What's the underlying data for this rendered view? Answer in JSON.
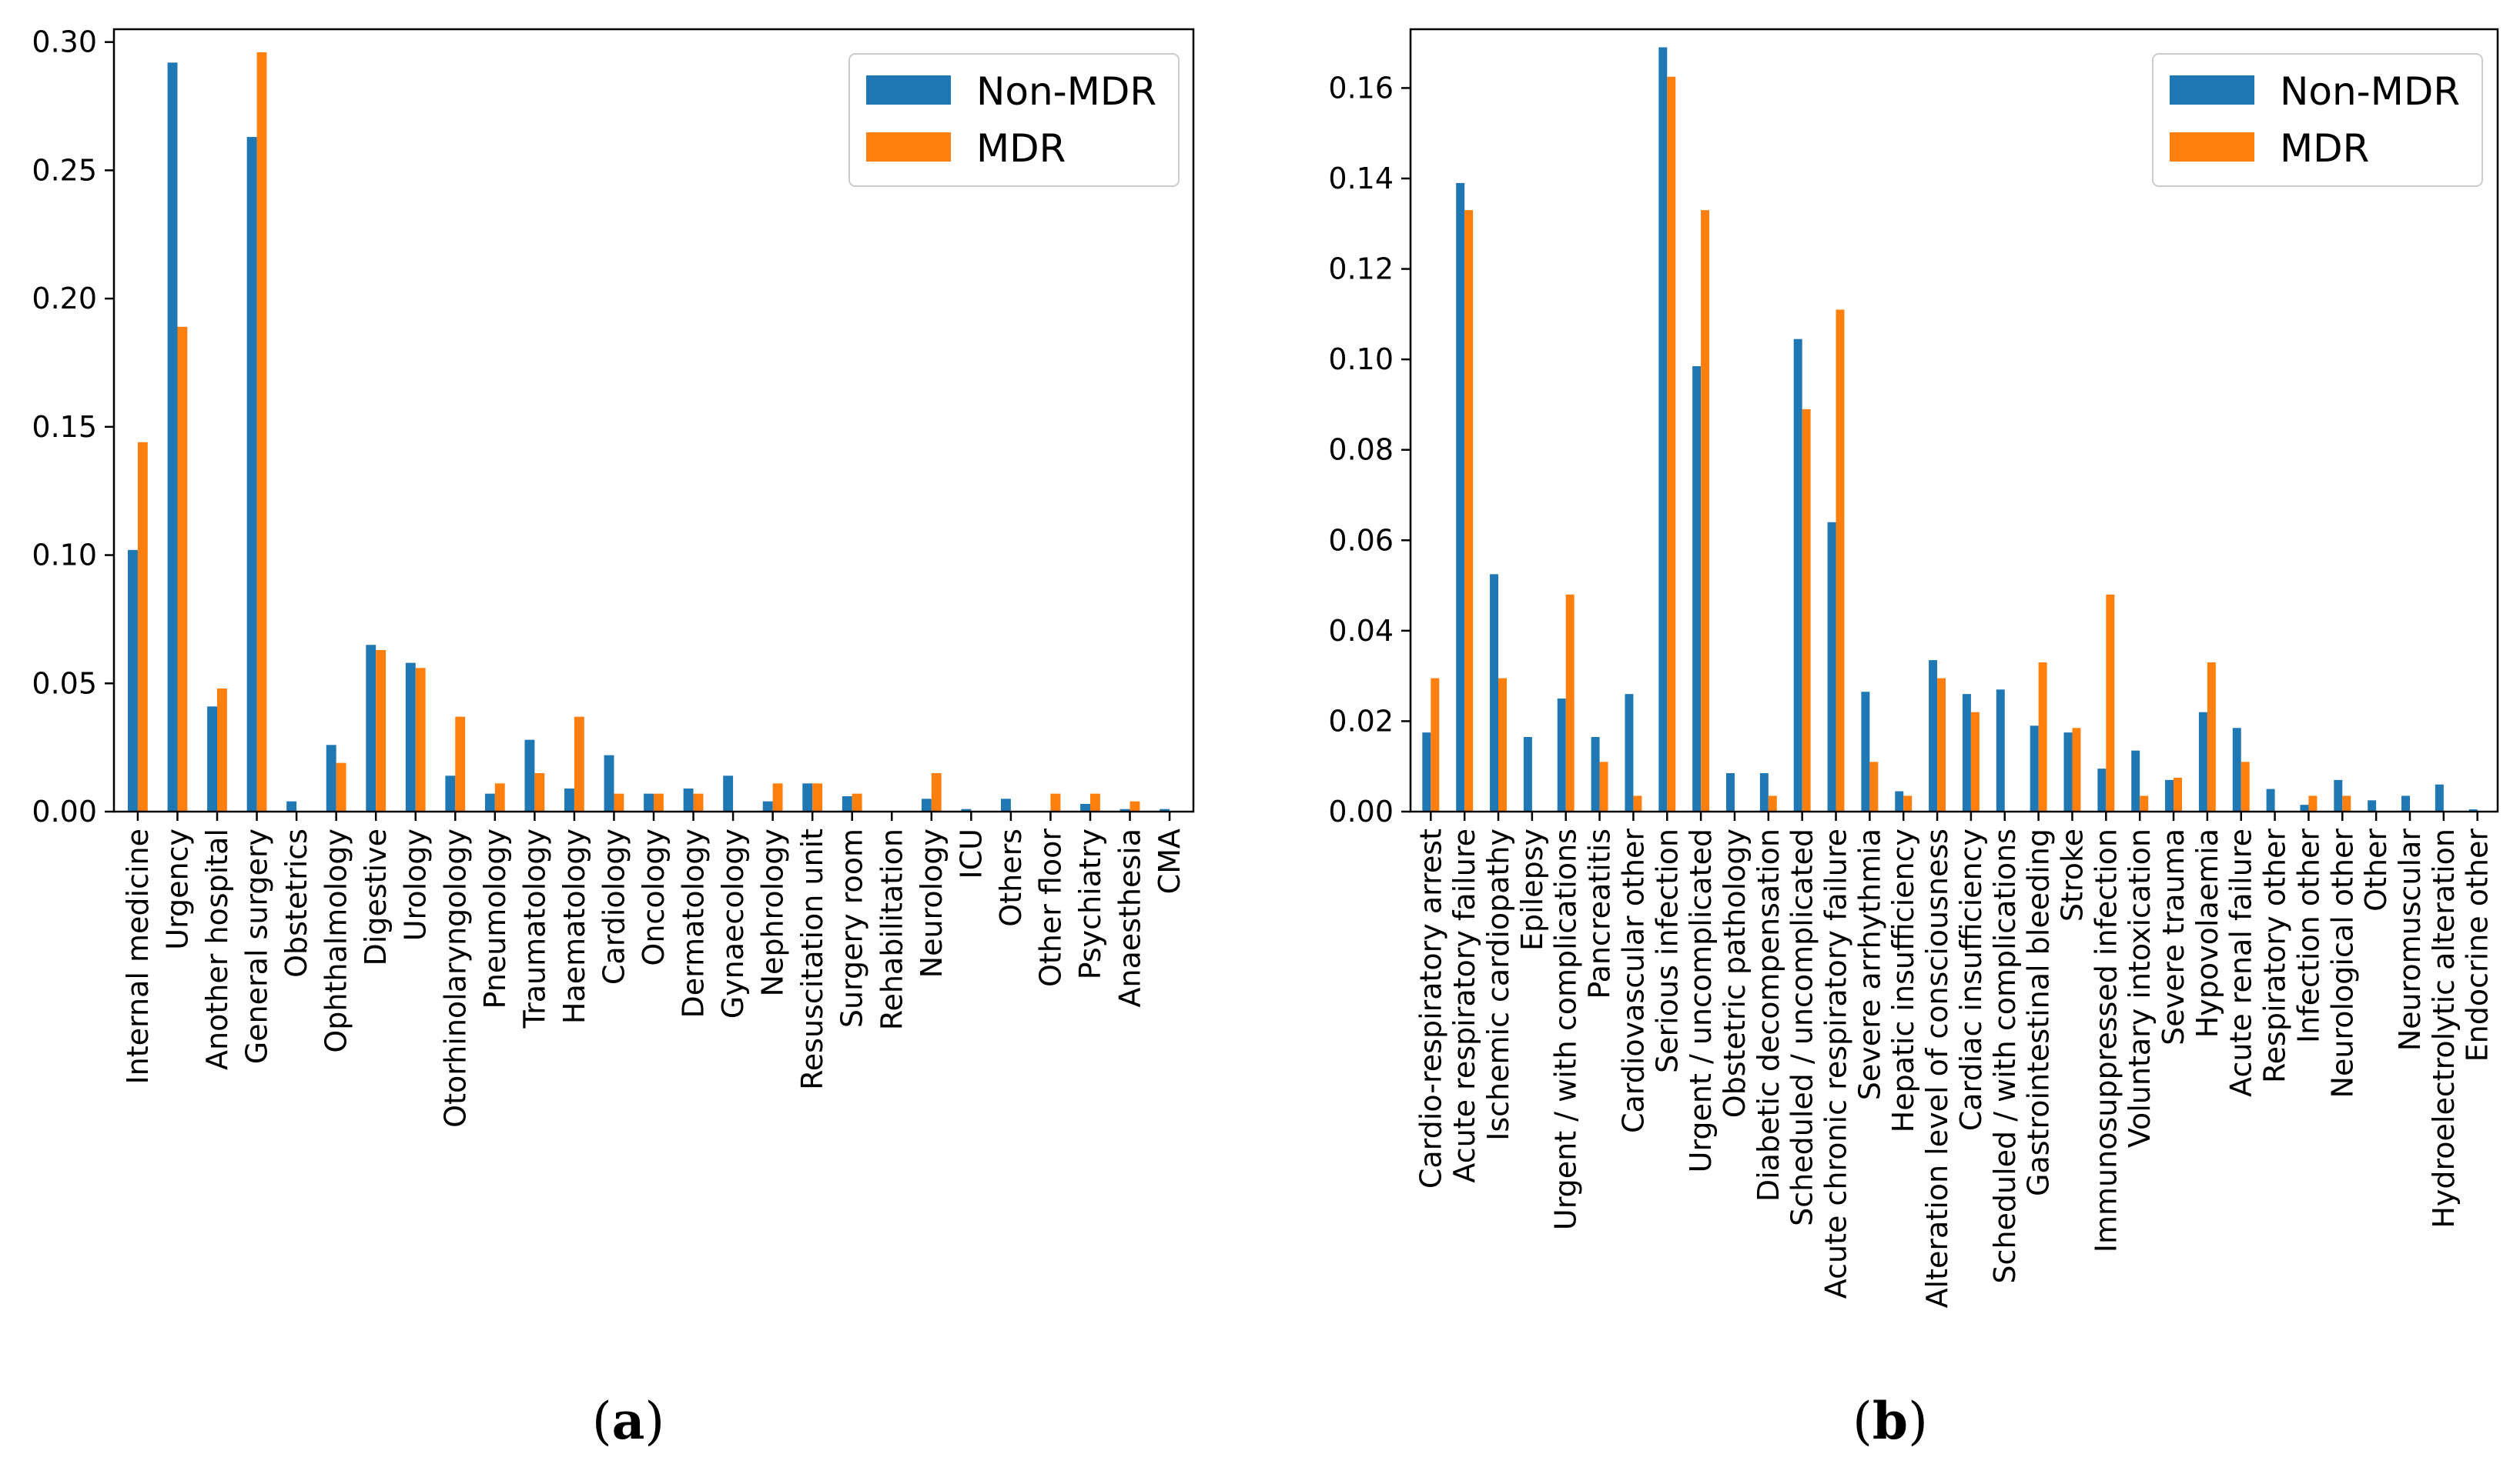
{
  "colors": {
    "non_mdr": "#1f77b4",
    "mdr": "#ff7f0e"
  },
  "chart_data": [
    {
      "type": "bar",
      "caption_letter": "a",
      "legend": {
        "placement": "top-right",
        "entries": [
          "Non-MDR",
          "MDR"
        ]
      },
      "ylim": [
        0,
        0.305
      ],
      "yticks": [
        {
          "value": 0.0,
          "label": "0.00"
        },
        {
          "value": 0.05,
          "label": "0.05"
        },
        {
          "value": 0.1,
          "label": "0.10"
        },
        {
          "value": 0.15,
          "label": "0.15"
        },
        {
          "value": 0.2,
          "label": "0.20"
        },
        {
          "value": 0.25,
          "label": "0.25"
        },
        {
          "value": 0.3,
          "label": "0.30"
        }
      ],
      "categories": [
        "Internal medicine",
        "Urgency",
        "Another hospital",
        "General surgery",
        "Obstetrics",
        "Ophthalmology",
        "Digestive",
        "Urology",
        "Otorhinolaryngology",
        "Pneumology",
        "Traumatology",
        "Haematology",
        "Cardiology",
        "Oncology",
        "Dermatology",
        "Gynaecology",
        "Nephrology",
        "Resuscitation unit",
        "Surgery room",
        "Rehabilitation",
        "Neurology",
        "ICU",
        "Others",
        "Other floor",
        "Psychiatry",
        "Anaesthesia",
        "CMA"
      ],
      "series": [
        {
          "name": "Non-MDR",
          "values": [
            0.102,
            0.292,
            0.041,
            0.263,
            0.004,
            0.026,
            0.065,
            0.058,
            0.014,
            0.007,
            0.028,
            0.009,
            0.022,
            0.007,
            0.009,
            0.014,
            0.004,
            0.011,
            0.006,
            0.0,
            0.005,
            0.001,
            0.005,
            0.0,
            0.003,
            0.001,
            0.001
          ]
        },
        {
          "name": "MDR",
          "values": [
            0.144,
            0.189,
            0.048,
            0.296,
            0.0,
            0.019,
            0.063,
            0.056,
            0.037,
            0.011,
            0.015,
            0.037,
            0.007,
            0.007,
            0.007,
            0.0,
            0.011,
            0.011,
            0.007,
            0.0,
            0.015,
            0.0,
            0.0,
            0.007,
            0.007,
            0.004,
            0.0
          ]
        }
      ]
    },
    {
      "type": "bar",
      "caption_letter": "b",
      "legend": {
        "placement": "top-right",
        "entries": [
          "Non-MDR",
          "MDR"
        ]
      },
      "ylim": [
        0,
        0.173
      ],
      "yticks": [
        {
          "value": 0.0,
          "label": "0.00"
        },
        {
          "value": 0.02,
          "label": "0.02"
        },
        {
          "value": 0.04,
          "label": "0.04"
        },
        {
          "value": 0.06,
          "label": "0.06"
        },
        {
          "value": 0.08,
          "label": "0.08"
        },
        {
          "value": 0.1,
          "label": "0.10"
        },
        {
          "value": 0.12,
          "label": "0.12"
        },
        {
          "value": 0.14,
          "label": "0.14"
        },
        {
          "value": 0.16,
          "label": "0.16"
        }
      ],
      "categories": [
        "Cardio-respiratory arrest",
        "Acute respiratory failure",
        "Ischemic cardiopathy",
        "Epilepsy",
        "Urgent / with complications",
        "Pancreatitis",
        "Cardiovascular other",
        "Serious infection",
        "Urgent / uncomplicated",
        "Obstetric pathology",
        "Diabetic decompensation",
        "Scheduled / uncomplicated",
        "Acute chronic respiratory failure",
        "Severe arrhythmia",
        "Hepatic insufficiency",
        "Alteration level of consciousness",
        "Cardiac insufficiency",
        "Scheduled / with complications",
        "Gastrointestinal bleeding",
        "Stroke",
        "Immunosuppressed infection",
        "Voluntary intoxication",
        "Severe trauma",
        "Hypovolaemia",
        "Acute renal failure",
        "Respiratory other",
        "Infection other",
        "Neurological other",
        "Other",
        "Neuromuscular",
        "Hydroelectrolytic alteration",
        "Endocrine other"
      ],
      "series": [
        {
          "name": "Non-MDR",
          "values": [
            0.0175,
            0.139,
            0.0525,
            0.0165,
            0.025,
            0.0165,
            0.026,
            0.169,
            0.0985,
            0.0085,
            0.0085,
            0.1045,
            0.064,
            0.0265,
            0.0045,
            0.0335,
            0.026,
            0.027,
            0.019,
            0.0175,
            0.0095,
            0.0135,
            0.007,
            0.022,
            0.0185,
            0.005,
            0.0015,
            0.007,
            0.0025,
            0.0035,
            0.006,
            0.0005
          ]
        },
        {
          "name": "MDR",
          "values": [
            0.0295,
            0.133,
            0.0295,
            0.0,
            0.048,
            0.011,
            0.0035,
            0.1625,
            0.133,
            0.0,
            0.0035,
            0.089,
            0.111,
            0.011,
            0.0035,
            0.0295,
            0.022,
            0.0,
            0.033,
            0.0185,
            0.048,
            0.0035,
            0.0075,
            0.033,
            0.011,
            0.0,
            0.0035,
            0.0035,
            0.0,
            0.0,
            0.0,
            0.0
          ]
        }
      ]
    }
  ]
}
